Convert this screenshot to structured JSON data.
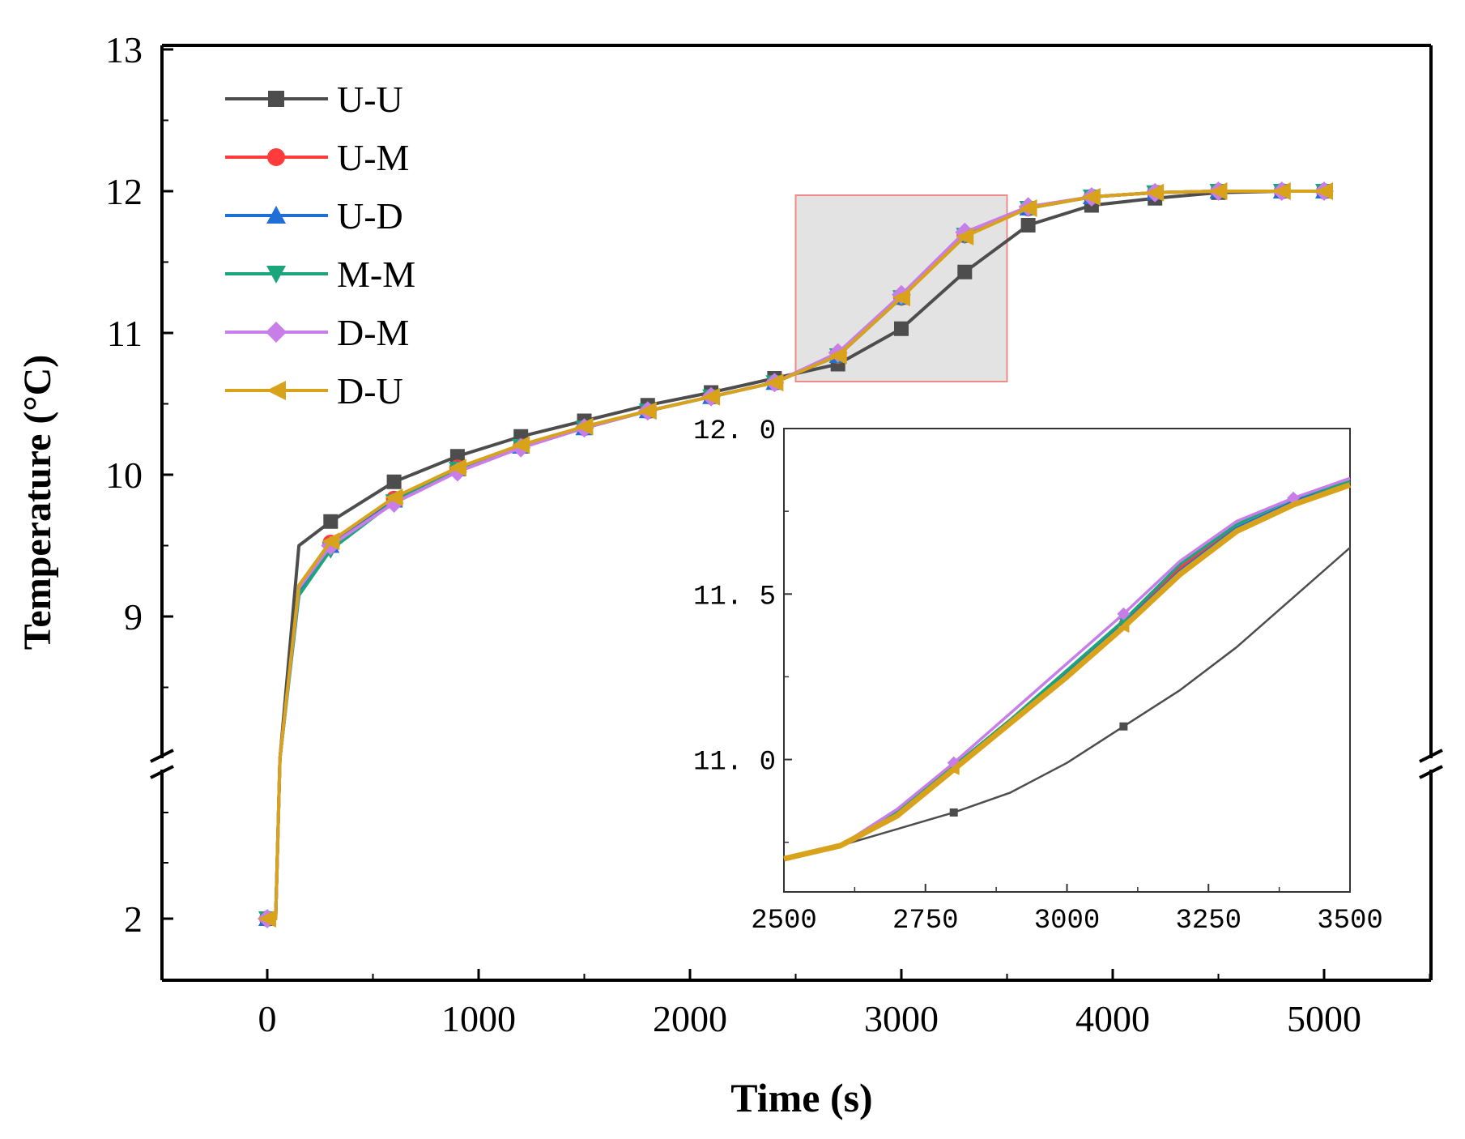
{
  "chart_data": {
    "type": "line",
    "xlabel": "Time (s)",
    "ylabel": "Temperature (°C)",
    "xlim": [
      -500,
      5500
    ],
    "ylim_upper": [
      8,
      13
    ],
    "ylim_lower": [
      1.5,
      4
    ],
    "x_ticks": [
      0,
      1000,
      2000,
      3000,
      4000,
      5000
    ],
    "x_tick_labels": [
      "0",
      "1000",
      "2000",
      "3000",
      "4000",
      "5000"
    ],
    "y_ticks": [
      2,
      9,
      10,
      11,
      12,
      13
    ],
    "y_tick_labels": [
      "2",
      "9",
      "10",
      "11",
      "12",
      "13"
    ],
    "legend_position": "top-left",
    "series": [
      {
        "name": "U-U",
        "color": "#4d4d4d",
        "marker": "square",
        "x": [
          0,
          40,
          60,
          150,
          300,
          600,
          900,
          1200,
          1500,
          1800,
          2100,
          2400,
          2700,
          3000,
          3300,
          3600,
          3900,
          4200,
          4500,
          4800,
          5000
        ],
        "y": [
          2,
          2,
          8,
          9.5,
          9.67,
          9.95,
          10.13,
          10.27,
          10.38,
          10.49,
          10.58,
          10.68,
          10.78,
          11.03,
          11.43,
          11.76,
          11.9,
          11.95,
          11.99,
          12.0,
          12.0
        ]
      },
      {
        "name": "U-M",
        "color": "#ff3b3b",
        "marker": "circle",
        "x": [
          0,
          40,
          60,
          150,
          300,
          600,
          900,
          1200,
          1500,
          1800,
          2100,
          2400,
          2700,
          3000,
          3300,
          3600,
          3900,
          4200,
          4500,
          4800,
          5000
        ],
        "y": [
          2,
          2,
          8,
          9.2,
          9.52,
          9.83,
          10.05,
          10.2,
          10.33,
          10.45,
          10.55,
          10.65,
          10.84,
          11.25,
          11.69,
          11.88,
          11.96,
          11.99,
          12.0,
          12.0,
          12.0
        ]
      },
      {
        "name": "U-D",
        "color": "#1f6fd6",
        "marker": "triangle-up",
        "x": [
          0,
          40,
          60,
          150,
          300,
          600,
          900,
          1200,
          1500,
          1800,
          2100,
          2400,
          2700,
          3000,
          3300,
          3600,
          3900,
          4200,
          4500,
          4800,
          5000
        ],
        "y": [
          2,
          2,
          8,
          9.18,
          9.5,
          9.82,
          10.04,
          10.2,
          10.33,
          10.45,
          10.55,
          10.65,
          10.84,
          11.25,
          11.69,
          11.88,
          11.96,
          11.99,
          12.0,
          12.0,
          12.0
        ]
      },
      {
        "name": "M-M",
        "color": "#1aa67a",
        "marker": "triangle-down",
        "x": [
          0,
          40,
          60,
          150,
          300,
          600,
          900,
          1200,
          1500,
          1800,
          2100,
          2400,
          2700,
          3000,
          3300,
          3600,
          3900,
          4200,
          4500,
          4800,
          5000
        ],
        "y": [
          2,
          2,
          8,
          9.15,
          9.47,
          9.81,
          10.04,
          10.2,
          10.33,
          10.45,
          10.55,
          10.65,
          10.84,
          11.25,
          11.69,
          11.88,
          11.96,
          11.99,
          12.0,
          12.0,
          12.0
        ]
      },
      {
        "name": "D-M",
        "color": "#c77ee8",
        "marker": "diamond",
        "x": [
          0,
          40,
          60,
          150,
          300,
          600,
          900,
          1200,
          1500,
          1800,
          2100,
          2400,
          2700,
          3000,
          3300,
          3600,
          3900,
          4200,
          4500,
          4800,
          5000
        ],
        "y": [
          2,
          2,
          8,
          9.2,
          9.5,
          9.8,
          10.02,
          10.19,
          10.33,
          10.45,
          10.55,
          10.65,
          10.86,
          11.27,
          11.71,
          11.89,
          11.96,
          11.99,
          12.0,
          12.0,
          12.0
        ]
      },
      {
        "name": "D-U",
        "color": "#d9a21b",
        "marker": "triangle-left",
        "x": [
          0,
          40,
          60,
          150,
          300,
          600,
          900,
          1200,
          1500,
          1800,
          2100,
          2400,
          2700,
          3000,
          3300,
          3600,
          3900,
          4200,
          4500,
          4800,
          5000
        ],
        "y": [
          2,
          2,
          8,
          9.22,
          9.53,
          9.84,
          10.05,
          10.21,
          10.34,
          10.45,
          10.55,
          10.65,
          10.84,
          11.25,
          11.68,
          11.88,
          11.96,
          11.99,
          12.0,
          12.0,
          12.0
        ]
      }
    ],
    "highlight_region": {
      "x": [
        2500,
        3500
      ],
      "y": [
        10.7,
        12.0
      ]
    },
    "inset": {
      "type": "line",
      "xlim": [
        2500,
        3500
      ],
      "ylim": [
        10.6,
        12.0
      ],
      "x_ticks": [
        2500,
        2750,
        3000,
        3250,
        3500
      ],
      "x_tick_labels": [
        "2500",
        "2750",
        "3000",
        "3250",
        "3500"
      ],
      "y_ticks": [
        11.0,
        11.5,
        12.0
      ],
      "y_tick_labels": [
        "11. 0",
        "11. 5",
        "12. 0"
      ],
      "series": [
        {
          "name": "U-U",
          "color": "#4d4d4d",
          "x": [
            2500,
            2600,
            2700,
            2800,
            2900,
            3000,
            3100,
            3200,
            3300,
            3400,
            3500
          ],
          "y": [
            10.7,
            10.74,
            10.79,
            10.84,
            10.9,
            10.99,
            11.1,
            11.21,
            11.34,
            11.49,
            11.64
          ]
        },
        {
          "name": "U-M",
          "color": "#ff3b3b",
          "x": [
            2500,
            2600,
            2700,
            2800,
            2900,
            3000,
            3100,
            3200,
            3300,
            3400,
            3500
          ],
          "y": [
            10.7,
            10.74,
            10.84,
            10.98,
            11.12,
            11.26,
            11.41,
            11.58,
            11.7,
            11.78,
            11.84
          ]
        },
        {
          "name": "U-D",
          "color": "#1f6fd6",
          "x": [
            2500,
            2600,
            2700,
            2800,
            2900,
            3000,
            3100,
            3200,
            3300,
            3400,
            3500
          ],
          "y": [
            10.7,
            10.74,
            10.84,
            10.98,
            11.12,
            11.26,
            11.41,
            11.57,
            11.7,
            11.78,
            11.84
          ]
        },
        {
          "name": "M-M",
          "color": "#1aa67a",
          "x": [
            2500,
            2600,
            2700,
            2800,
            2900,
            3000,
            3100,
            3200,
            3300,
            3400,
            3500
          ],
          "y": [
            10.7,
            10.74,
            10.84,
            10.98,
            11.12,
            11.27,
            11.42,
            11.59,
            11.71,
            11.79,
            11.84
          ]
        },
        {
          "name": "D-M",
          "color": "#c77ee8",
          "x": [
            2500,
            2600,
            2700,
            2800,
            2900,
            3000,
            3100,
            3200,
            3300,
            3400,
            3500
          ],
          "y": [
            10.7,
            10.74,
            10.85,
            10.99,
            11.14,
            11.29,
            11.44,
            11.6,
            11.72,
            11.79,
            11.85
          ]
        },
        {
          "name": "D-U",
          "color": "#d9a21b",
          "x": [
            2500,
            2600,
            2700,
            2800,
            2900,
            3000,
            3100,
            3200,
            3300,
            3400,
            3500
          ],
          "y": [
            10.7,
            10.74,
            10.83,
            10.97,
            11.11,
            11.25,
            11.4,
            11.56,
            11.69,
            11.77,
            11.83
          ]
        }
      ]
    }
  }
}
